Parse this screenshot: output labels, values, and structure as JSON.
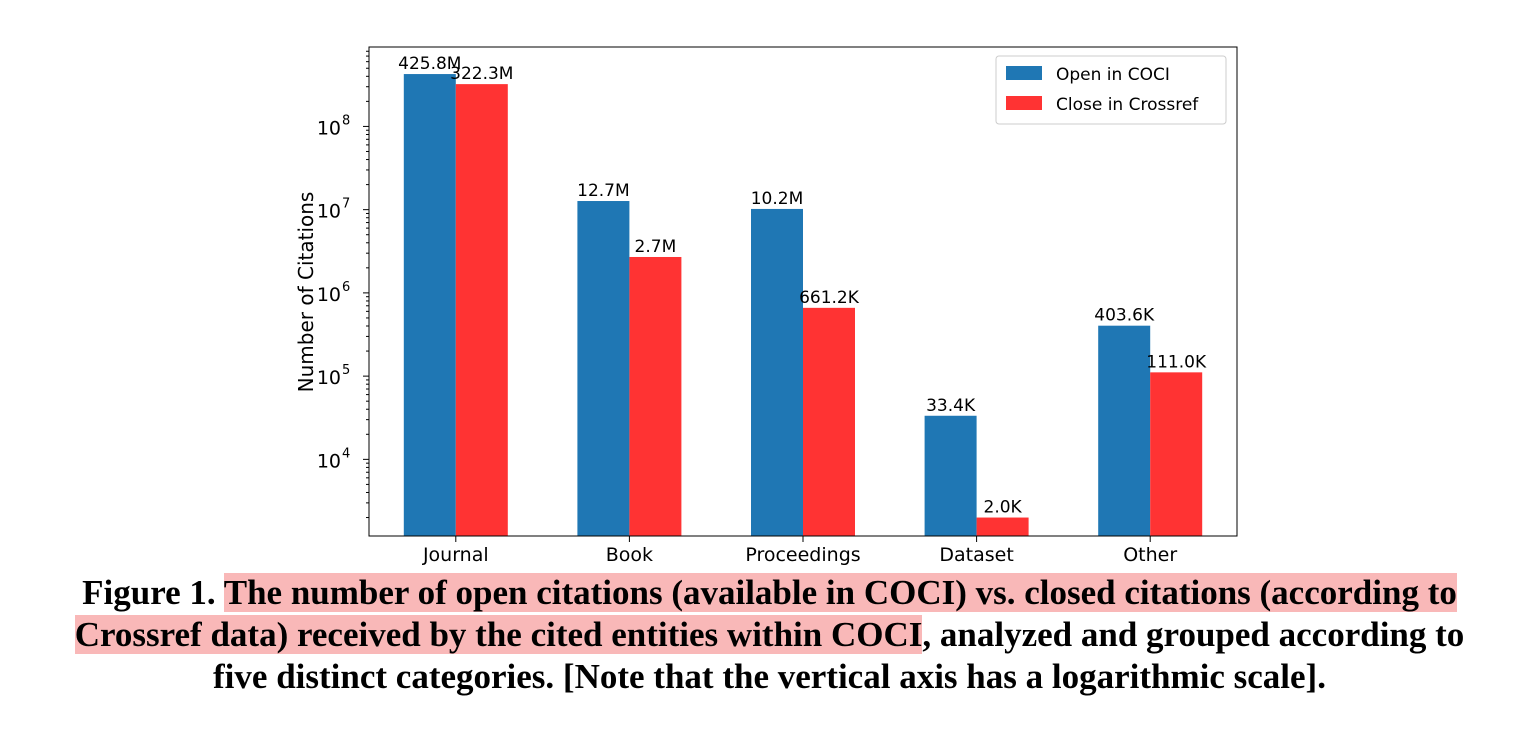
{
  "chart_data": {
    "type": "bar",
    "categories": [
      "Journal",
      "Book",
      "Proceedings",
      "Dataset",
      "Other"
    ],
    "series": [
      {
        "name": "Open in COCI",
        "color": "#1f77b4",
        "values": [
          425800000,
          12700000,
          10200000,
          33400,
          403600
        ],
        "labels": [
          "425.8M",
          "12.7M",
          "10.2M",
          "33.4K",
          "403.6K"
        ]
      },
      {
        "name": "Close in Crossref",
        "color": "#ff3333",
        "values": [
          322300000,
          2700000,
          661200,
          2000,
          111000
        ],
        "labels": [
          "322.3M",
          "2.7M",
          "661.2K",
          "2.0K",
          "111.0K"
        ]
      }
    ],
    "ylabel": "Number of Citations",
    "xlabel": "",
    "yscale": "log",
    "ylim": [
      1200,
      900000000
    ],
    "yticks": [
      {
        "value": 10000,
        "base": "10",
        "exp": "4"
      },
      {
        "value": 100000,
        "base": "10",
        "exp": "5"
      },
      {
        "value": 1000000,
        "base": "10",
        "exp": "6"
      },
      {
        "value": 10000000,
        "base": "10",
        "exp": "7"
      },
      {
        "value": 100000000,
        "base": "10",
        "exp": "8"
      }
    ],
    "legend_position": "top-right",
    "grid": false
  },
  "caption": {
    "prefix": "Figure 1. ",
    "highlighted_line1": "The number of open citations (available in COCI) vs. closed citations (according to",
    "highlighted_line2": "Crossref data) received by the cited entities within COCI",
    "rest_line2": ", analyzed and grouped according to",
    "line3": "five distinct categories. [Note that the vertical axis has a logarithmic scale]."
  }
}
